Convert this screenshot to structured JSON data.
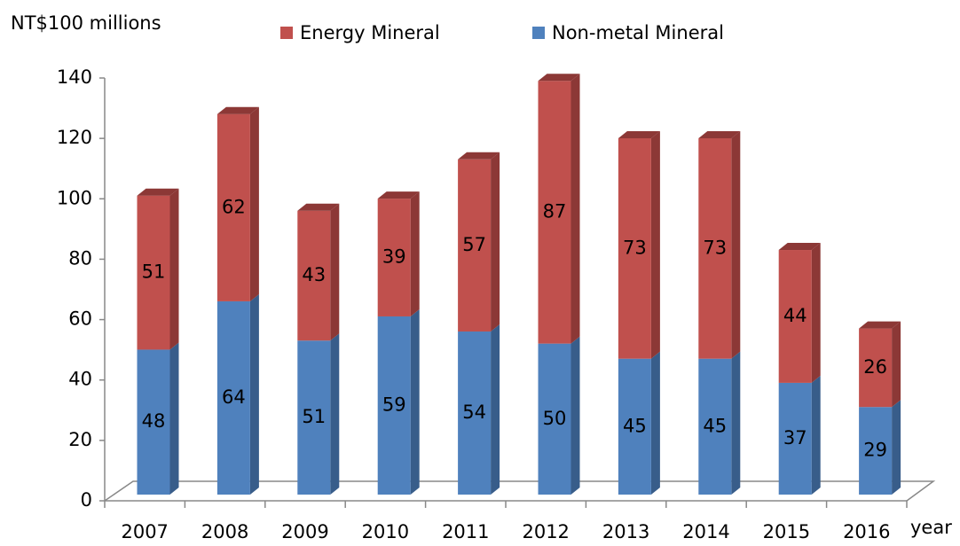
{
  "chart_data": {
    "type": "bar",
    "stacked": true,
    "three_d": true,
    "y_label": "NT$100 millions",
    "x_label": "year",
    "categories": [
      "2007",
      "2008",
      "2009",
      "2010",
      "2011",
      "2012",
      "2013",
      "2014",
      "2015",
      "2016"
    ],
    "series": [
      {
        "name": "Non-metal Mineral",
        "color": "#4f81bd",
        "side_color": "#385d8a",
        "values": [
          48,
          64,
          51,
          59,
          54,
          50,
          45,
          45,
          37,
          29
        ]
      },
      {
        "name": "Energy Mineral",
        "color": "#c0504d",
        "side_color": "#8c3836",
        "values": [
          51,
          62,
          43,
          39,
          57,
          87,
          73,
          73,
          44,
          26
        ]
      }
    ],
    "ylim": [
      0,
      140
    ],
    "yticks": [
      0,
      20,
      40,
      60,
      80,
      100,
      120,
      140
    ],
    "grid": false
  }
}
